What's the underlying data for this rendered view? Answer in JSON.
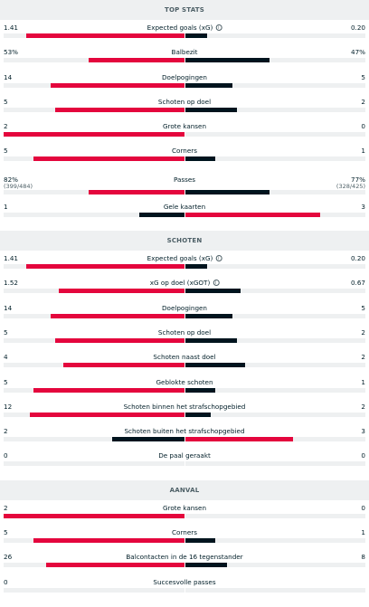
{
  "sections": [
    {
      "title": "TOP STATS",
      "rows": [
        {
          "name": "Expected goals (xG)",
          "home": "1.41",
          "away": "0.20",
          "home_share": 0.876,
          "away_share": 0.124,
          "info": true
        },
        {
          "name": "Balbezit",
          "home": "53%",
          "away": "47%",
          "home_share": 0.53,
          "away_share": 0.47
        },
        {
          "name": "Doelpogingen",
          "home": "14",
          "away": "5",
          "home_share": 0.737,
          "away_share": 0.263
        },
        {
          "name": "Schoten op doel",
          "home": "5",
          "away": "2",
          "home_share": 0.714,
          "away_share": 0.286
        },
        {
          "name": "Grote kansen",
          "home": "2",
          "away": "0",
          "home_share": 1.0,
          "away_share": 0.0
        },
        {
          "name": "Corners",
          "home": "5",
          "away": "1",
          "home_share": 0.833,
          "away_share": 0.167
        },
        {
          "name": "Passes",
          "home": "82%",
          "away": "77%",
          "home_sub": "(399/484)",
          "away_sub": "(328/425)",
          "home_share": 0.53,
          "away_share": 0.47,
          "tall": true
        },
        {
          "name": "Gele kaarten",
          "home": "1",
          "away": "3",
          "home_share": 0.25,
          "away_share": 0.75,
          "away_wins": true
        }
      ]
    },
    {
      "title": "SCHOTEN",
      "rows": [
        {
          "name": "Expected goals (xG)",
          "home": "1.41",
          "away": "0.20",
          "home_share": 0.876,
          "away_share": 0.124,
          "info": true
        },
        {
          "name": "xG op doel (xGOT)",
          "home": "1.52",
          "away": "0.67",
          "home_share": 0.694,
          "away_share": 0.306,
          "info": true
        },
        {
          "name": "Doelpogingen",
          "home": "14",
          "away": "5",
          "home_share": 0.737,
          "away_share": 0.263
        },
        {
          "name": "Schoten op doel",
          "home": "5",
          "away": "2",
          "home_share": 0.714,
          "away_share": 0.286
        },
        {
          "name": "Schoten naast doel",
          "home": "4",
          "away": "2",
          "home_share": 0.667,
          "away_share": 0.333
        },
        {
          "name": "Geblokte schoten",
          "home": "5",
          "away": "1",
          "home_share": 0.833,
          "away_share": 0.167
        },
        {
          "name": "Schoten binnen het strafschopgebied",
          "home": "12",
          "away": "2",
          "home_share": 0.857,
          "away_share": 0.143
        },
        {
          "name": "Schoten buiten het strafschopgebied",
          "home": "2",
          "away": "3",
          "home_share": 0.4,
          "away_share": 0.6,
          "away_wins": true
        },
        {
          "name": "De paal geraakt",
          "home": "0",
          "away": "0",
          "home_share": 0.0,
          "away_share": 0.0
        }
      ]
    },
    {
      "title": "AANVAL",
      "rows": [
        {
          "name": "Grote kansen",
          "home": "2",
          "away": "0",
          "home_share": 1.0,
          "away_share": 0.0
        },
        {
          "name": "Corners",
          "home": "5",
          "away": "1",
          "home_share": 0.833,
          "away_share": 0.167
        },
        {
          "name": "Balcontacten in de 16 tegenstander",
          "home": "26",
          "away": "8",
          "home_share": 0.765,
          "away_share": 0.235
        },
        {
          "name": "Succesvolle passes",
          "home": "0",
          "away": "",
          "home_share": 0.0,
          "away_share": 0.0
        }
      ]
    }
  ],
  "colors": {
    "leader": "#e4063d",
    "trailer": "#00141e",
    "track": "#eef0f1"
  }
}
